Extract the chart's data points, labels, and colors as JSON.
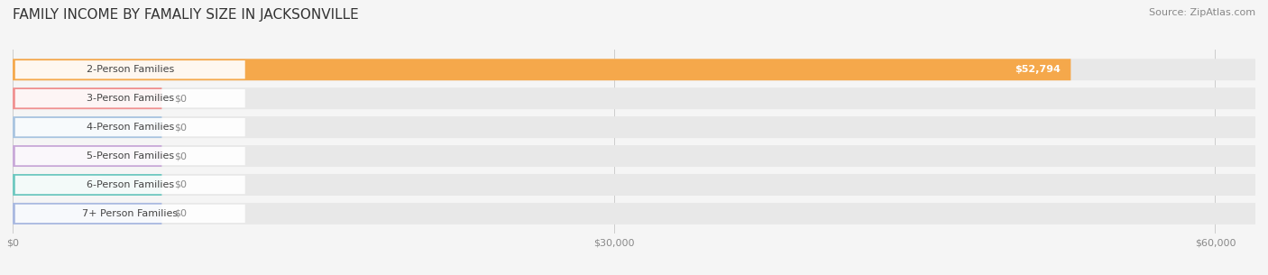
{
  "title": "FAMILY INCOME BY FAMALIY SIZE IN JACKSONVILLE",
  "source": "Source: ZipAtlas.com",
  "categories": [
    "2-Person Families",
    "3-Person Families",
    "4-Person Families",
    "5-Person Families",
    "6-Person Families",
    "7+ Person Families"
  ],
  "values": [
    52794,
    0,
    0,
    0,
    0,
    0
  ],
  "bar_colors": [
    "#F5A84B",
    "#F09090",
    "#A8C4E0",
    "#C8A8D8",
    "#6DC8C0",
    "#A8B8E0"
  ],
  "label_colors": [
    "#C87820",
    "#C05050",
    "#5080A8",
    "#9060A8",
    "#30A098",
    "#6070A8"
  ],
  "value_labels": [
    "$52,794",
    "$0",
    "$0",
    "$0",
    "$0",
    "$0"
  ],
  "xlim": [
    0,
    62000
  ],
  "xticks": [
    0,
    30000,
    60000
  ],
  "xticklabels": [
    "$0",
    "$30,000",
    "$60,000"
  ],
  "bg_color": "#f5f5f5",
  "bar_bg_color": "#e8e8e8",
  "title_fontsize": 11,
  "source_fontsize": 8,
  "label_fontsize": 8,
  "value_fontsize": 8
}
